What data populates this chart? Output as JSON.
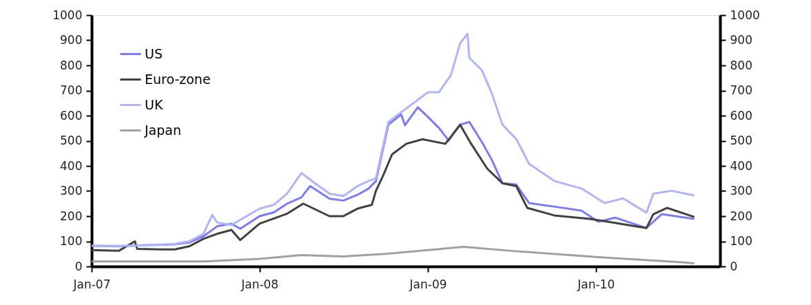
{
  "chart_data": {
    "type": "line",
    "xlim": [
      "2007-01-01",
      "2010-09-28"
    ],
    "xticks": [
      {
        "value": "2007-01-01",
        "label": "Jan-07"
      },
      {
        "value": "2008-01-01",
        "label": "Jan-08"
      },
      {
        "value": "2009-01-01",
        "label": "Jan-09"
      },
      {
        "value": "2010-01-01",
        "label": "Jan-10"
      }
    ],
    "ylim": [
      0,
      1000
    ],
    "yticks": [
      0,
      100,
      200,
      300,
      400,
      500,
      600,
      700,
      800,
      900,
      1000
    ],
    "y2lim": [
      0,
      1000
    ],
    "y2ticks": [
      0,
      100,
      200,
      300,
      400,
      500,
      600,
      700,
      800,
      900,
      1000
    ],
    "grid": false,
    "legend": "top left",
    "marker": "none",
    "line_style": "solid",
    "series": [
      {
        "name": "US",
        "color": "#7b7bf5",
        "x": [
          "2007-01-01",
          "2007-03-01",
          "2007-05-01",
          "2007-07-01",
          "2007-08-01",
          "2007-09-01",
          "2007-10-01",
          "2007-11-01",
          "2007-11-20",
          "2008-01-01",
          "2008-02-01",
          "2008-03-01",
          "2008-04-01",
          "2008-04-20",
          "2008-06-01",
          "2008-07-01",
          "2008-08-01",
          "2008-08-25",
          "2008-09-10",
          "2008-10-07",
          "2008-11-04",
          "2008-11-12",
          "2008-12-10",
          "2009-01-01",
          "2009-01-25",
          "2009-02-15",
          "2009-03-12",
          "2009-04-01",
          "2009-04-28",
          "2009-05-19",
          "2009-06-12",
          "2009-07-12",
          "2009-08-09",
          "2009-10-03",
          "2009-12-01",
          "2010-01-06",
          "2010-02-12",
          "2010-04-21",
          "2010-05-24",
          "2010-08-03"
        ],
        "values": [
          82,
          80,
          85,
          88,
          95,
          120,
          160,
          170,
          150,
          200,
          215,
          250,
          275,
          320,
          270,
          262,
          285,
          310,
          340,
          564,
          605,
          562,
          633,
          595,
          551,
          501,
          564,
          575,
          496,
          427,
          331,
          326,
          252,
          238,
          222,
          178,
          194,
          153,
          208,
          189
        ]
      },
      {
        "name": "Euro-zone",
        "color": "#404040",
        "x": [
          "2007-01-01",
          "2007-03-01",
          "2007-04-05",
          "2007-04-10",
          "2007-06-01",
          "2007-07-01",
          "2007-08-01",
          "2007-09-01",
          "2007-10-01",
          "2007-11-01",
          "2007-11-20",
          "2008-01-01",
          "2008-03-01",
          "2008-04-05",
          "2008-06-01",
          "2008-07-01",
          "2008-08-01",
          "2008-09-01",
          "2008-09-10",
          "2008-09-25",
          "2008-10-15",
          "2008-11-15",
          "2008-12-20",
          "2009-02-08",
          "2009-03-12",
          "2009-04-05",
          "2009-05-10",
          "2009-06-12",
          "2009-07-12",
          "2009-08-05",
          "2009-10-03",
          "2009-12-20",
          "2010-02-12",
          "2010-04-21",
          "2010-05-06",
          "2010-06-05",
          "2010-08-03"
        ],
        "values": [
          65,
          62,
          100,
          70,
          68,
          68,
          80,
          110,
          130,
          145,
          105,
          170,
          210,
          250,
          200,
          200,
          230,
          245,
          301,
          359,
          446,
          488,
          506,
          488,
          564,
          488,
          389,
          331,
          320,
          233,
          203,
          189,
          173,
          153,
          208,
          233,
          197
        ]
      },
      {
        "name": "UK",
        "color": "#b0b4fa",
        "x": [
          "2007-01-01",
          "2007-04-01",
          "2007-07-01",
          "2007-08-01",
          "2007-09-01",
          "2007-09-20",
          "2007-10-01",
          "2007-11-01",
          "2008-01-01",
          "2008-02-01",
          "2008-03-01",
          "2008-04-01",
          "2008-05-01",
          "2008-06-01",
          "2008-07-01",
          "2008-08-01",
          "2008-08-25",
          "2008-09-10",
          "2008-10-07",
          "2008-11-04",
          "2008-12-10",
          "2009-01-01",
          "2009-01-25",
          "2009-02-20",
          "2009-03-12",
          "2009-03-28",
          "2009-04-01",
          "2009-04-28",
          "2009-05-19",
          "2009-06-12",
          "2009-07-12",
          "2009-08-09",
          "2009-10-03",
          "2009-12-01",
          "2010-01-20",
          "2010-03-01",
          "2010-04-21",
          "2010-05-06",
          "2010-06-15",
          "2010-08-03"
        ],
        "values": [
          82,
          82,
          90,
          100,
          130,
          205,
          175,
          165,
          230,
          245,
          290,
          372,
          330,
          290,
          280,
          320,
          340,
          351,
          575,
          614,
          663,
          693,
          693,
          762,
          888,
          926,
          830,
          781,
          693,
          564,
          507,
          408,
          340,
          310,
          252,
          271,
          214,
          290,
          301,
          282
        ]
      },
      {
        "name": "Japan",
        "color": "#a0a0a0",
        "x": [
          "2007-01-01",
          "2007-09-01",
          "2008-01-01",
          "2008-04-01",
          "2008-07-01",
          "2008-10-01",
          "2009-01-01",
          "2009-03-20",
          "2009-07-01",
          "2010-01-06",
          "2010-07-15",
          "2010-08-03"
        ],
        "values": [
          20,
          20,
          30,
          45,
          40,
          50,
          65,
          78,
          62,
          37,
          16,
          12
        ]
      }
    ]
  }
}
